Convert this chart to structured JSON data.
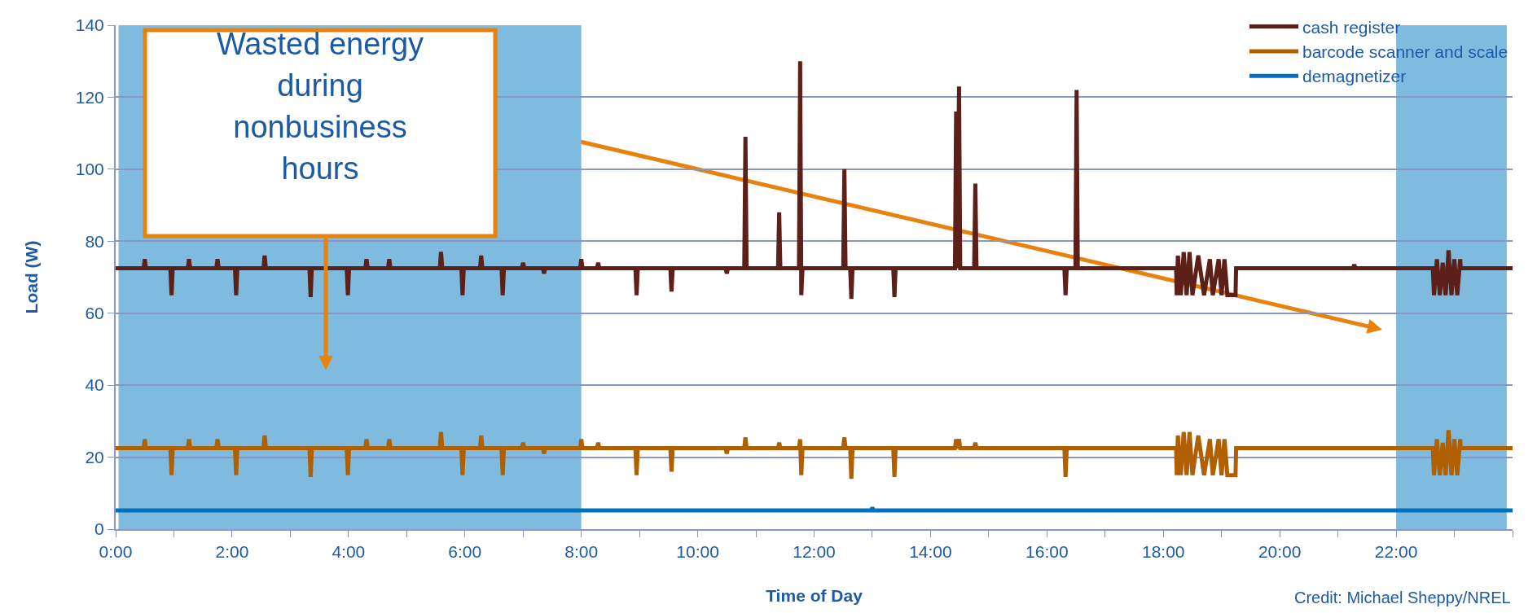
{
  "chart_data": {
    "type": "line",
    "xlabel": "Time of Day",
    "ylabel": "Load (W)",
    "x": [
      0,
      0.48,
      0.5,
      0.52,
      0.94,
      0.96,
      0.98,
      1.24,
      1.26,
      1.28,
      1.73,
      1.75,
      1.77,
      2.05,
      2.07,
      2.09,
      2.54,
      2.56,
      2.58,
      3.33,
      3.35,
      3.37,
      3.97,
      3.99,
      4.01,
      4.29,
      4.31,
      4.33,
      4.68,
      4.7,
      4.72,
      5.57,
      5.59,
      5.61,
      5.94,
      5.96,
      5.98,
      6.26,
      6.28,
      6.3,
      6.63,
      6.65,
      6.67,
      6.98,
      7.0,
      7.02,
      7.34,
      7.36,
      7.38,
      7.98,
      8.0,
      8.02,
      8.27,
      8.29,
      8.31,
      8.93,
      8.95,
      8.97,
      9.53,
      9.55,
      9.57,
      10.48,
      10.5,
      10.52,
      10.8,
      10.82,
      10.84,
      11.38,
      11.4,
      11.42,
      11.74,
      11.76,
      11.78,
      11.8,
      12.5,
      12.52,
      12.54,
      12.62,
      12.64,
      12.66,
      13.36,
      13.38,
      13.4,
      14.42,
      14.44,
      14.46,
      14.49,
      14.51,
      14.75,
      14.77,
      14.79,
      16.3,
      16.32,
      16.34,
      16.49,
      16.51,
      16.53,
      18.22,
      18.23,
      18.25,
      18.3,
      18.35,
      18.4,
      18.45,
      18.5,
      18.6,
      18.7,
      18.8,
      18.85,
      18.95,
      19.0,
      19.05,
      19.1,
      19.24,
      19.25,
      21.26,
      21.28,
      21.3,
      22.63,
      22.65,
      22.7,
      22.75,
      22.8,
      22.85,
      22.9,
      22.95,
      23.0,
      23.05,
      23.1,
      23.11,
      24
    ],
    "series": [
      {
        "name": "cash register",
        "color": "#5c2018",
        "values": [
          72.5,
          72.5,
          75,
          72.5,
          72.5,
          65,
          72.5,
          72.5,
          75,
          72.5,
          72.5,
          75,
          72.5,
          72.5,
          65,
          72.5,
          72.5,
          76,
          72.5,
          72.5,
          64.5,
          72.5,
          72.5,
          65,
          72.5,
          72.5,
          75,
          72.5,
          72.5,
          75,
          72.5,
          72.5,
          77,
          72.5,
          72.5,
          65,
          72.5,
          72.5,
          76,
          72.5,
          72.5,
          65,
          72.5,
          72.5,
          74,
          72.5,
          72.5,
          71,
          72.5,
          72.5,
          75,
          72.5,
          72.5,
          74,
          72.5,
          72.5,
          65,
          72.5,
          72.5,
          66,
          72.5,
          72.5,
          71,
          72.5,
          72.5,
          109,
          72.5,
          72.5,
          88,
          72.5,
          72.5,
          130,
          65,
          72.5,
          72.5,
          100,
          72.5,
          72.5,
          64,
          72.5,
          72.5,
          64.5,
          72.5,
          72.5,
          116,
          72.5,
          123,
          72.5,
          72.5,
          96,
          72.5,
          72.5,
          65,
          72.5,
          72.5,
          122,
          72.5,
          72.5,
          65,
          76,
          65,
          77,
          65,
          77,
          65,
          76,
          65,
          75,
          65,
          75,
          65,
          75,
          65,
          65,
          72.5,
          72.5,
          73.5,
          72.5,
          72.5,
          65,
          75,
          65,
          74,
          65,
          77.5,
          65,
          75,
          65,
          75,
          72.5,
          72.5
        ]
      },
      {
        "name": "barcode scanner and scale",
        "color": "#b06000",
        "values": [
          22.5,
          22.5,
          25,
          22.5,
          22.5,
          15,
          22.5,
          22.5,
          25,
          22.5,
          22.5,
          25,
          22.5,
          22.5,
          15,
          22.5,
          22.5,
          26,
          22.5,
          22.5,
          14.5,
          22.5,
          22.5,
          15,
          22.5,
          22.5,
          25,
          22.5,
          22.5,
          25,
          22.5,
          22.5,
          27,
          22.5,
          22.5,
          15,
          22.5,
          22.5,
          26,
          22.5,
          22.5,
          15,
          22.5,
          22.5,
          24,
          22.5,
          22.5,
          21,
          22.5,
          22.5,
          25,
          22.5,
          22.5,
          24,
          22.5,
          22.5,
          15,
          22.5,
          22.5,
          16,
          22.5,
          22.5,
          21,
          22.5,
          22.5,
          25.5,
          22.5,
          22.5,
          24,
          22.5,
          22.5,
          25,
          15,
          22.5,
          22.5,
          25.5,
          22.5,
          22.5,
          14,
          22.5,
          22.5,
          14.5,
          22.5,
          22.5,
          25,
          22.5,
          25,
          22.5,
          22.5,
          24,
          22.5,
          22.5,
          14.5,
          22.5,
          22.5,
          22.5,
          22.5,
          22.5,
          15,
          26,
          15,
          27,
          15,
          27,
          15,
          26,
          15,
          25,
          15,
          25,
          15,
          25,
          15,
          15,
          22.5,
          22.5,
          22.5,
          22.5,
          22.5,
          15,
          25,
          15,
          24,
          15,
          27.5,
          15,
          25,
          15,
          25,
          22.5,
          22.5
        ]
      },
      {
        "name": "demagnetizer",
        "color": "#0070c0",
        "x": [
          0,
          12.98,
          13.0,
          13.02,
          24
        ],
        "values": [
          5.2,
          5.2,
          6,
          5.2,
          5.2
        ]
      }
    ],
    "xlim": [
      0,
      24
    ],
    "xticks": [
      {
        "value": 0,
        "label": "0:00"
      },
      {
        "value": 1,
        "label": null
      },
      {
        "value": 2,
        "label": "2:00"
      },
      {
        "value": 3,
        "label": null
      },
      {
        "value": 4,
        "label": "4:00"
      },
      {
        "value": 5,
        "label": null
      },
      {
        "value": 6,
        "label": "6:00"
      },
      {
        "value": 7,
        "label": null
      },
      {
        "value": 8,
        "label": "8:00"
      },
      {
        "value": 9,
        "label": null
      },
      {
        "value": 10,
        "label": "10:00"
      },
      {
        "value": 11,
        "label": null
      },
      {
        "value": 12,
        "label": "12:00"
      },
      {
        "value": 13,
        "label": null
      },
      {
        "value": 14,
        "label": "14:00"
      },
      {
        "value": 15,
        "label": null
      },
      {
        "value": 16,
        "label": "16:00"
      },
      {
        "value": 17,
        "label": null
      },
      {
        "value": 18,
        "label": "18:00"
      },
      {
        "value": 19,
        "label": null
      },
      {
        "value": 20,
        "label": "20:00"
      },
      {
        "value": 21,
        "label": null
      },
      {
        "value": 22,
        "label": "22:00"
      },
      {
        "value": 23,
        "label": null
      },
      {
        "value": 24,
        "label": null
      }
    ],
    "ylim": [
      0,
      140
    ],
    "yticks": [
      0,
      20,
      40,
      60,
      80,
      100,
      120,
      140
    ],
    "bands": [
      {
        "axis": "x",
        "from": 0.05,
        "to": 8.0,
        "color": "#7fbadf"
      },
      {
        "axis": "x",
        "from": 22.0,
        "to": 23.9,
        "color": "#7fbadf"
      }
    ],
    "annotations": [
      "Wasted energy\nduring\nnonbusiness\nhours",
      "Credit: Michael Sheppy/NREL"
    ],
    "grid": "y",
    "legend": "top right",
    "marker": "none",
    "line_style": "solid"
  }
}
